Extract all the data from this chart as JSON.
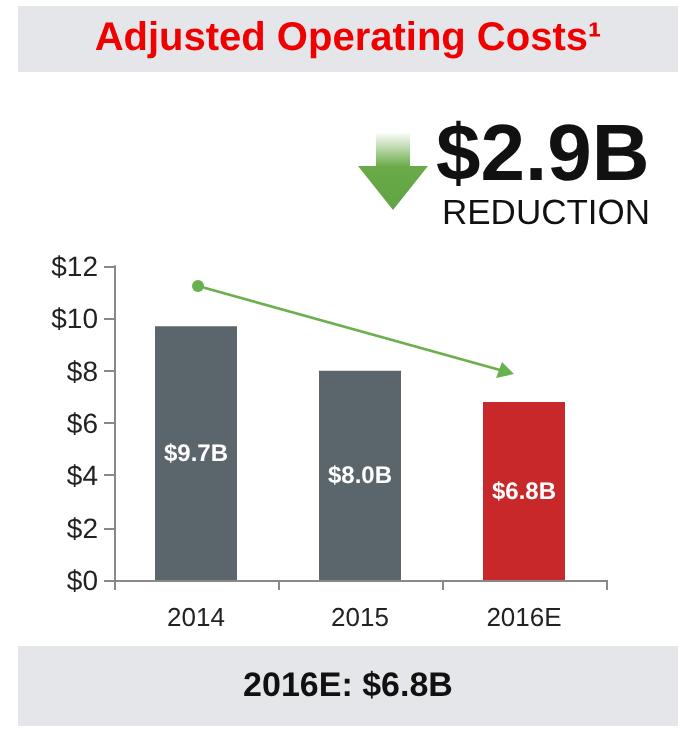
{
  "chart_data": {
    "type": "bar",
    "title": "Adjusted Operating Costs¹",
    "annotations": [
      "$2.9B",
      "REDUCTION",
      "2016E: $6.8B"
    ],
    "categories": [
      "2014",
      "2015",
      "2016E"
    ],
    "values": [
      9.7,
      8.0,
      6.8
    ],
    "colors": [
      "#5a666c",
      "#5a666c",
      "#c8282a"
    ],
    "value_labels": [
      "$9.7B",
      "$8.0B",
      "$6.8B"
    ],
    "ylim": [
      0,
      12
    ],
    "yticks": [
      {
        "value": 0,
        "label": "$0"
      },
      {
        "value": 2,
        "label": "$2"
      },
      {
        "value": 4,
        "label": "$4"
      },
      {
        "value": 6,
        "label": "$6"
      },
      {
        "value": 8,
        "label": "$8"
      },
      {
        "value": 10,
        "label": "$10"
      },
      {
        "value": 12,
        "label": "$12"
      }
    ],
    "grid": false
  }
}
